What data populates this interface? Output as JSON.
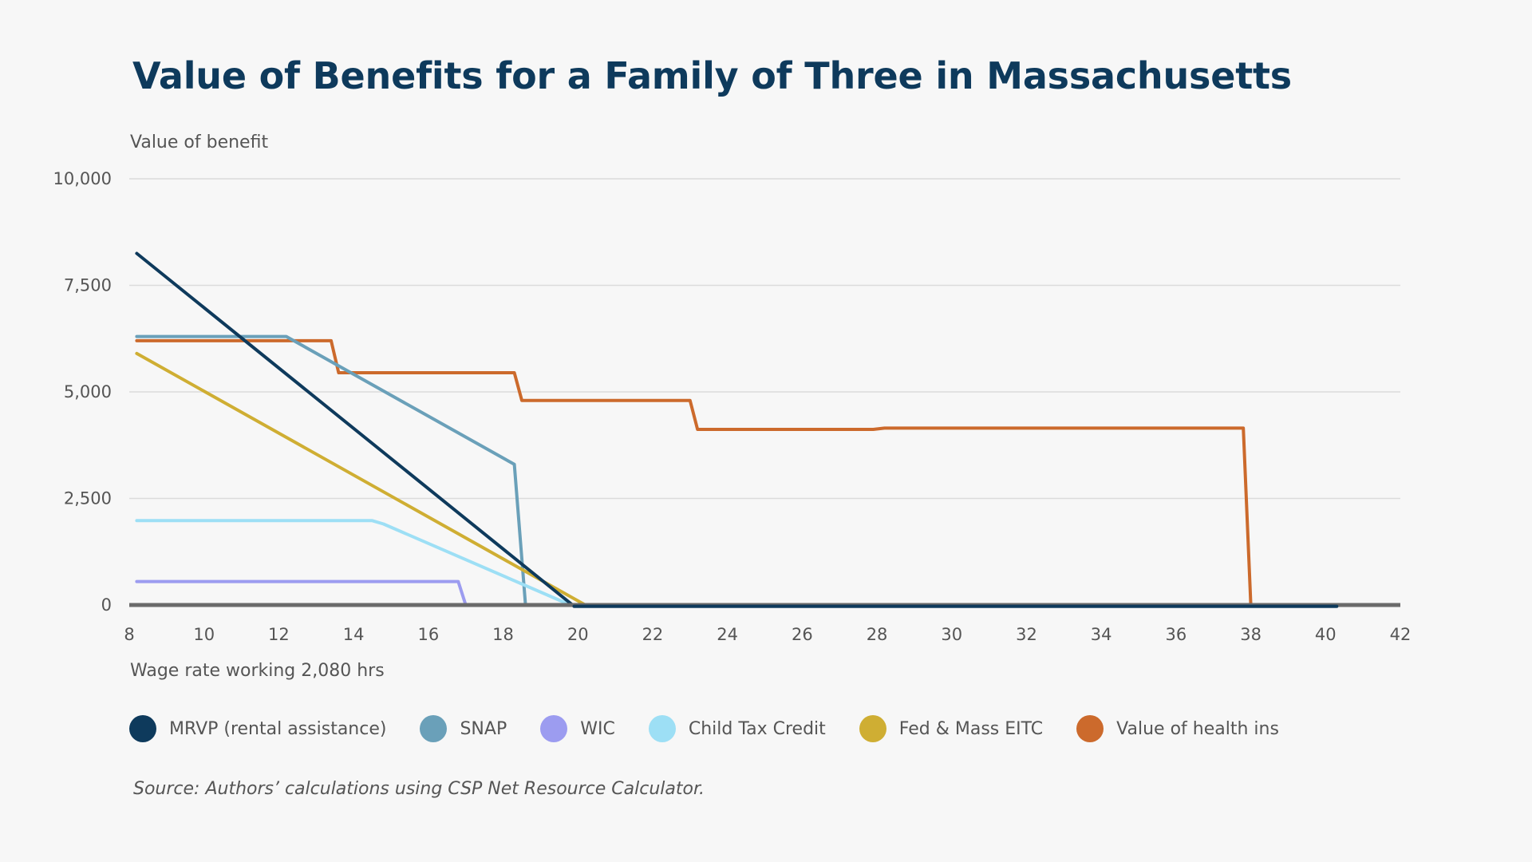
{
  "chart_data": {
    "type": "line",
    "title": "Value of Benefits for a Family of Three in Massachusetts",
    "ylabel": "Value of benefit",
    "xlabel": "Wage rate working 2,080 hrs",
    "source": "Source: Authors’ calculations using CSP Net Resource Calculator.",
    "xlim": [
      8,
      42
    ],
    "ylim": [
      0,
      10000
    ],
    "x_ticks": [
      8,
      10,
      12,
      14,
      16,
      18,
      20,
      22,
      24,
      26,
      28,
      30,
      32,
      34,
      36,
      38,
      40,
      42
    ],
    "x_tick_labels": [
      "8",
      "10",
      "12",
      "14",
      "16",
      "18",
      "20",
      "22",
      "24",
      "26",
      "28",
      "30",
      "32",
      "34",
      "36",
      "38",
      "40",
      "42"
    ],
    "y_ticks": [
      0,
      2500,
      5000,
      7500,
      10000
    ],
    "y_tick_labels": [
      "0",
      "2,500",
      "5,000",
      "7,500",
      "10,000"
    ],
    "grid": true,
    "legend_position": "bottom",
    "series": [
      {
        "name": "Value of health ins",
        "color": "#cc6a2c",
        "points": [
          [
            8.2,
            6200
          ],
          [
            13.4,
            6200
          ],
          [
            13.6,
            5450
          ],
          [
            18.3,
            5450
          ],
          [
            18.5,
            4800
          ],
          [
            23.0,
            4800
          ],
          [
            23.2,
            4120
          ],
          [
            27.9,
            4120
          ],
          [
            28.2,
            4150
          ],
          [
            37.8,
            4150
          ],
          [
            38.0,
            0
          ],
          [
            40.3,
            0
          ]
        ]
      },
      {
        "name": "SNAP",
        "color": "#6aa0b9",
        "points": [
          [
            8.2,
            6300
          ],
          [
            12.2,
            6300
          ],
          [
            18.3,
            3300
          ],
          [
            18.6,
            0
          ],
          [
            40.3,
            0
          ]
        ]
      },
      {
        "name": "WIC",
        "color": "#9c9cf0",
        "points": [
          [
            8.2,
            550
          ],
          [
            16.8,
            550
          ],
          [
            17.0,
            0
          ],
          [
            40.3,
            0
          ]
        ]
      },
      {
        "name": "Child Tax Credit",
        "color": "#9ddff5",
        "points": [
          [
            8.2,
            1980
          ],
          [
            14.5,
            1980
          ],
          [
            14.8,
            1900
          ],
          [
            19.8,
            0
          ],
          [
            40.3,
            0
          ]
        ]
      },
      {
        "name": "Fed & Mass EITC",
        "color": "#cfae33",
        "points": [
          [
            8.2,
            5900
          ],
          [
            20.2,
            0
          ],
          [
            40.3,
            0
          ]
        ]
      },
      {
        "name": "MRVP (rental assistance)",
        "color": "#0e3a5c",
        "points": [
          [
            8.2,
            8250
          ],
          [
            19.9,
            -30
          ],
          [
            40.3,
            -30
          ]
        ]
      }
    ],
    "legend_order": [
      {
        "label": "MRVP (rental assistance)",
        "color": "#0e3a5c"
      },
      {
        "label": "SNAP",
        "color": "#6aa0b9"
      },
      {
        "label": "WIC",
        "color": "#9c9cf0"
      },
      {
        "label": "Child Tax Credit",
        "color": "#9ddff5"
      },
      {
        "label": "Fed & Mass EITC",
        "color": "#cfae33"
      },
      {
        "label": "Value of health ins",
        "color": "#cc6a2c"
      }
    ]
  }
}
